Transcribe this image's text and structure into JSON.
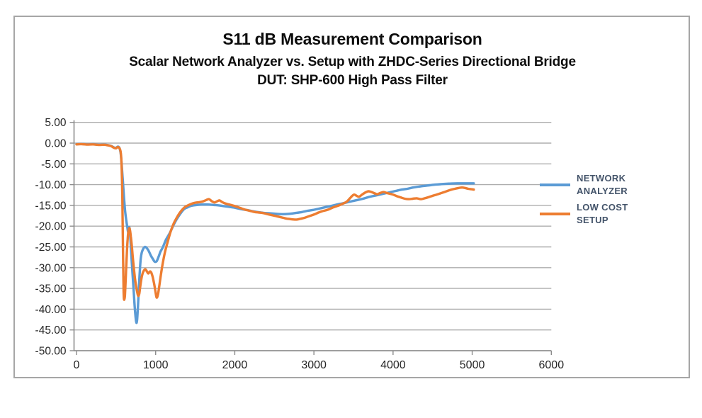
{
  "chart": {
    "title": "S11 dB Measurement Comparison",
    "subtitle_line1": "Scalar Network Analyzer vs. Setup with ZHDC-Series Directional Bridge",
    "subtitle_line2": "DUT: SHP-600 High Pass Filter",
    "legend": {
      "items": [
        {
          "label": "NETWORK\nANALYZER",
          "color": "#5B9BD5"
        },
        {
          "label": "LOW COST\nSETUP",
          "color": "#ED7D31"
        }
      ]
    },
    "colors": {
      "network_analyzer_line": "#5B9BD5",
      "low_cost_setup_line": "#ED7D31",
      "gridline": "#ADADAD",
      "axis_line": "#8C8C8C",
      "tick_text": "#262626",
      "frame_border": "#A6A6A6",
      "legend_text": "#44546A",
      "title_text": "#0d0d0d"
    }
  },
  "chart_data": {
    "type": "line",
    "title": "S11 dB Measurement Comparison",
    "subtitle": "Scalar Network Analyzer vs. Setup with ZHDC-Series Directional Bridge — DUT: SHP-600 High Pass Filter",
    "xlabel": "",
    "ylabel": "",
    "xlim": [
      0,
      6000
    ],
    "ylim": [
      -50,
      5
    ],
    "grid": true,
    "legend_position": "right",
    "x_ticks": [
      0,
      1000,
      2000,
      3000,
      4000,
      5000,
      6000
    ],
    "x_tick_labels": [
      "0",
      "1000",
      "2000",
      "3000",
      "4000",
      "5000",
      "6000"
    ],
    "y_ticks": [
      5,
      0,
      -5,
      -10,
      -15,
      -20,
      -25,
      -30,
      -35,
      -40,
      -45,
      -50
    ],
    "y_tick_labels": [
      "5.00",
      "0.00",
      "-5.00",
      "-10.00",
      "-15.00",
      "-20.00",
      "-25.00",
      "-30.00",
      "-35.00",
      "-40.00",
      "-45.00",
      "-50.00"
    ],
    "series": [
      {
        "name": "NETWORK ANALYZER",
        "color": "#5B9BD5",
        "points": [
          [
            0,
            -0.25
          ],
          [
            70,
            -0.2
          ],
          [
            140,
            -0.3
          ],
          [
            210,
            -0.25
          ],
          [
            280,
            -0.4
          ],
          [
            350,
            -0.35
          ],
          [
            400,
            -0.5
          ],
          [
            440,
            -0.7
          ],
          [
            475,
            -1.05
          ],
          [
            500,
            -1.15
          ],
          [
            520,
            -0.85
          ],
          [
            538,
            -1.0
          ],
          [
            550,
            -1.6
          ],
          [
            560,
            -2.8
          ],
          [
            572,
            -5.5
          ],
          [
            585,
            -9
          ],
          [
            600,
            -13
          ],
          [
            615,
            -16.5
          ],
          [
            630,
            -18.8
          ],
          [
            642,
            -20.2
          ],
          [
            652,
            -21.4
          ],
          [
            660,
            -20.8
          ],
          [
            666,
            -20.2
          ],
          [
            674,
            -21
          ],
          [
            684,
            -24
          ],
          [
            695,
            -27.5
          ],
          [
            708,
            -31.5
          ],
          [
            722,
            -35.5
          ],
          [
            736,
            -39.5
          ],
          [
            748,
            -42.2
          ],
          [
            757,
            -43.3
          ],
          [
            766,
            -42.5
          ],
          [
            776,
            -39.5
          ],
          [
            788,
            -35
          ],
          [
            800,
            -30.8
          ],
          [
            812,
            -27.8
          ],
          [
            825,
            -26.3
          ],
          [
            845,
            -25.4
          ],
          [
            865,
            -25.0
          ],
          [
            885,
            -25.2
          ],
          [
            910,
            -25.9
          ],
          [
            940,
            -27.1
          ],
          [
            965,
            -27.9
          ],
          [
            985,
            -28.5
          ],
          [
            1000,
            -28.6
          ],
          [
            1015,
            -28.4
          ],
          [
            1035,
            -27.5
          ],
          [
            1060,
            -26.2
          ],
          [
            1090,
            -25.1
          ],
          [
            1130,
            -23.3
          ],
          [
            1180,
            -21.6
          ],
          [
            1230,
            -19.6
          ],
          [
            1270,
            -18.2
          ],
          [
            1320,
            -16.8
          ],
          [
            1360,
            -15.9
          ],
          [
            1400,
            -15.5
          ],
          [
            1450,
            -15.1
          ],
          [
            1520,
            -14.9
          ],
          [
            1590,
            -14.8
          ],
          [
            1660,
            -14.8
          ],
          [
            1730,
            -14.9
          ],
          [
            1800,
            -15.0
          ],
          [
            1870,
            -15.2
          ],
          [
            1940,
            -15.4
          ],
          [
            2010,
            -15.6
          ],
          [
            2080,
            -15.9
          ],
          [
            2150,
            -16.1
          ],
          [
            2220,
            -16.4
          ],
          [
            2290,
            -16.6
          ],
          [
            2360,
            -16.8
          ],
          [
            2430,
            -16.9
          ],
          [
            2500,
            -17.0
          ],
          [
            2570,
            -17.1
          ],
          [
            2640,
            -17.1
          ],
          [
            2710,
            -17.0
          ],
          [
            2780,
            -16.8
          ],
          [
            2850,
            -16.6
          ],
          [
            2920,
            -16.3
          ],
          [
            2990,
            -16.1
          ],
          [
            3060,
            -15.8
          ],
          [
            3130,
            -15.5
          ],
          [
            3200,
            -15.2
          ],
          [
            3270,
            -14.9
          ],
          [
            3340,
            -14.6
          ],
          [
            3410,
            -14.3
          ],
          [
            3480,
            -14.0
          ],
          [
            3550,
            -13.7
          ],
          [
            3620,
            -13.4
          ],
          [
            3690,
            -13.0
          ],
          [
            3760,
            -12.7
          ],
          [
            3830,
            -12.4
          ],
          [
            3900,
            -12.1
          ],
          [
            3970,
            -11.8
          ],
          [
            4040,
            -11.5
          ],
          [
            4110,
            -11.2
          ],
          [
            4180,
            -11.0
          ],
          [
            4250,
            -10.7
          ],
          [
            4320,
            -10.5
          ],
          [
            4390,
            -10.3
          ],
          [
            4460,
            -10.15
          ],
          [
            4530,
            -10.0
          ],
          [
            4600,
            -9.9
          ],
          [
            4670,
            -9.8
          ],
          [
            4740,
            -9.75
          ],
          [
            4810,
            -9.7
          ],
          [
            4880,
            -9.7
          ],
          [
            4950,
            -9.7
          ],
          [
            5020,
            -9.7
          ]
        ]
      },
      {
        "name": "LOW COST SETUP",
        "color": "#ED7D31",
        "points": [
          [
            0,
            -0.3
          ],
          [
            70,
            -0.25
          ],
          [
            140,
            -0.35
          ],
          [
            210,
            -0.3
          ],
          [
            280,
            -0.45
          ],
          [
            350,
            -0.4
          ],
          [
            400,
            -0.55
          ],
          [
            440,
            -0.75
          ],
          [
            475,
            -1.15
          ],
          [
            500,
            -1.25
          ],
          [
            520,
            -0.95
          ],
          [
            538,
            -1.1
          ],
          [
            550,
            -1.5
          ],
          [
            558,
            -2.1
          ],
          [
            566,
            -3.8
          ],
          [
            573,
            -7.5
          ],
          [
            579,
            -13
          ],
          [
            584,
            -20
          ],
          [
            589,
            -28
          ],
          [
            594,
            -34.5
          ],
          [
            599,
            -37.4
          ],
          [
            605,
            -37.6
          ],
          [
            611,
            -36.9
          ],
          [
            618,
            -34.5
          ],
          [
            627,
            -30.5
          ],
          [
            636,
            -26.5
          ],
          [
            646,
            -23.2
          ],
          [
            656,
            -21.2
          ],
          [
            666,
            -20.5
          ],
          [
            674,
            -20.8
          ],
          [
            686,
            -22.4
          ],
          [
            698,
            -24.6
          ],
          [
            712,
            -27.6
          ],
          [
            730,
            -31.2
          ],
          [
            748,
            -33.9
          ],
          [
            766,
            -35.8
          ],
          [
            780,
            -36.8
          ],
          [
            793,
            -36.3
          ],
          [
            806,
            -34.5
          ],
          [
            820,
            -32.7
          ],
          [
            835,
            -31.4
          ],
          [
            852,
            -30.7
          ],
          [
            870,
            -30.4
          ],
          [
            890,
            -30.9
          ],
          [
            908,
            -31.4
          ],
          [
            928,
            -30.9
          ],
          [
            945,
            -31.2
          ],
          [
            962,
            -32.2
          ],
          [
            980,
            -33.8
          ],
          [
            998,
            -35.8
          ],
          [
            1012,
            -37.2
          ],
          [
            1028,
            -36.6
          ],
          [
            1045,
            -34.6
          ],
          [
            1065,
            -31.9
          ],
          [
            1090,
            -28.9
          ],
          [
            1120,
            -26.1
          ],
          [
            1155,
            -23.6
          ],
          [
            1190,
            -21.3
          ],
          [
            1230,
            -19.3
          ],
          [
            1275,
            -17.7
          ],
          [
            1320,
            -16.4
          ],
          [
            1370,
            -15.4
          ],
          [
            1420,
            -14.9
          ],
          [
            1470,
            -14.5
          ],
          [
            1520,
            -14.3
          ],
          [
            1565,
            -14.2
          ],
          [
            1605,
            -14.0
          ],
          [
            1640,
            -13.7
          ],
          [
            1675,
            -13.5
          ],
          [
            1710,
            -14.0
          ],
          [
            1745,
            -14.3
          ],
          [
            1778,
            -14.0
          ],
          [
            1808,
            -13.8
          ],
          [
            1840,
            -14.2
          ],
          [
            1875,
            -14.5
          ],
          [
            1910,
            -14.7
          ],
          [
            1950,
            -14.9
          ],
          [
            1990,
            -15.1
          ],
          [
            2035,
            -15.4
          ],
          [
            2080,
            -15.7
          ],
          [
            2125,
            -16.0
          ],
          [
            2165,
            -16.2
          ],
          [
            2210,
            -16.4
          ],
          [
            2255,
            -16.6
          ],
          [
            2300,
            -16.7
          ],
          [
            2345,
            -16.8
          ],
          [
            2390,
            -17.0
          ],
          [
            2435,
            -17.2
          ],
          [
            2480,
            -17.4
          ],
          [
            2525,
            -17.6
          ],
          [
            2570,
            -17.8
          ],
          [
            2615,
            -18.0
          ],
          [
            2660,
            -18.2
          ],
          [
            2700,
            -18.3
          ],
          [
            2745,
            -18.4
          ],
          [
            2790,
            -18.4
          ],
          [
            2835,
            -18.2
          ],
          [
            2880,
            -18.0
          ],
          [
            2925,
            -17.7
          ],
          [
            2970,
            -17.4
          ],
          [
            3015,
            -17.1
          ],
          [
            3060,
            -16.7
          ],
          [
            3105,
            -16.4
          ],
          [
            3150,
            -16.2
          ],
          [
            3195,
            -15.9
          ],
          [
            3240,
            -15.5
          ],
          [
            3285,
            -15.2
          ],
          [
            3330,
            -14.9
          ],
          [
            3375,
            -14.5
          ],
          [
            3415,
            -14.1
          ],
          [
            3450,
            -13.4
          ],
          [
            3485,
            -12.7
          ],
          [
            3510,
            -12.4
          ],
          [
            3540,
            -12.7
          ],
          [
            3572,
            -12.9
          ],
          [
            3608,
            -12.4
          ],
          [
            3650,
            -11.9
          ],
          [
            3690,
            -11.6
          ],
          [
            3730,
            -11.8
          ],
          [
            3768,
            -12.1
          ],
          [
            3800,
            -12.3
          ],
          [
            3840,
            -12.0
          ],
          [
            3880,
            -11.8
          ],
          [
            3920,
            -12.0
          ],
          [
            3960,
            -12.2
          ],
          [
            4000,
            -12.4
          ],
          [
            4050,
            -12.8
          ],
          [
            4100,
            -13.1
          ],
          [
            4150,
            -13.4
          ],
          [
            4200,
            -13.5
          ],
          [
            4250,
            -13.4
          ],
          [
            4300,
            -13.3
          ],
          [
            4350,
            -13.5
          ],
          [
            4400,
            -13.3
          ],
          [
            4450,
            -13.0
          ],
          [
            4500,
            -12.7
          ],
          [
            4550,
            -12.4
          ],
          [
            4600,
            -12.1
          ],
          [
            4660,
            -11.7
          ],
          [
            4720,
            -11.3
          ],
          [
            4780,
            -11.0
          ],
          [
            4830,
            -10.8
          ],
          [
            4870,
            -10.7
          ],
          [
            4910,
            -10.8
          ],
          [
            4950,
            -11.0
          ],
          [
            4985,
            -11.1
          ],
          [
            5020,
            -11.2
          ]
        ]
      }
    ]
  }
}
